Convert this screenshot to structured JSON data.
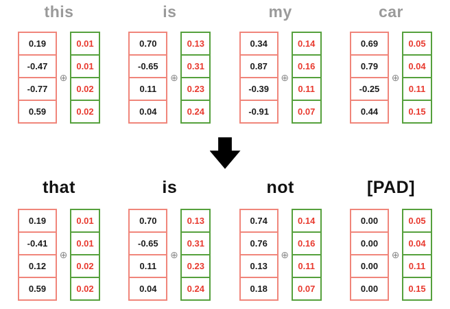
{
  "operator_symbol": "⊕",
  "colors": {
    "embedding_border": "#f0857a",
    "positional_border": "#55a03c",
    "positional_text": "#e8392e",
    "embedding_text": "#1a1a1a",
    "top_label": "#9a9a9a",
    "bottom_label": "#111111",
    "operator": "#8a8a8a",
    "arrow": "#000000"
  },
  "rows": [
    {
      "name": "input-tokens",
      "tokens": [
        {
          "label": "this",
          "embedding": [
            "0.19",
            "-0.47",
            "-0.77",
            "0.59"
          ],
          "positional": [
            "0.01",
            "0.01",
            "0.02",
            "0.02"
          ]
        },
        {
          "label": "is",
          "embedding": [
            "0.70",
            "-0.65",
            "0.11",
            "0.04"
          ],
          "positional": [
            "0.13",
            "0.31",
            "0.23",
            "0.24"
          ]
        },
        {
          "label": "my",
          "embedding": [
            "0.34",
            "0.87",
            "-0.39",
            "-0.91"
          ],
          "positional": [
            "0.14",
            "0.16",
            "0.11",
            "0.07"
          ]
        },
        {
          "label": "car",
          "embedding": [
            "0.69",
            "0.79",
            "-0.25",
            "0.44"
          ],
          "positional": [
            "0.05",
            "0.04",
            "0.11",
            "0.15"
          ]
        }
      ]
    },
    {
      "name": "output-tokens",
      "tokens": [
        {
          "label": "that",
          "embedding": [
            "0.19",
            "-0.41",
            "0.12",
            "0.59"
          ],
          "positional": [
            "0.01",
            "0.01",
            "0.02",
            "0.02"
          ]
        },
        {
          "label": "is",
          "embedding": [
            "0.70",
            "-0.65",
            "0.11",
            "0.04"
          ],
          "positional": [
            "0.13",
            "0.31",
            "0.23",
            "0.24"
          ]
        },
        {
          "label": "not",
          "embedding": [
            "0.74",
            "0.76",
            "0.13",
            "0.18"
          ],
          "positional": [
            "0.14",
            "0.16",
            "0.11",
            "0.07"
          ]
        },
        {
          "label": "[PAD]",
          "embedding": [
            "0.00",
            "0.00",
            "0.00",
            "0.00"
          ],
          "positional": [
            "0.05",
            "0.04",
            "0.11",
            "0.15"
          ]
        }
      ]
    }
  ]
}
